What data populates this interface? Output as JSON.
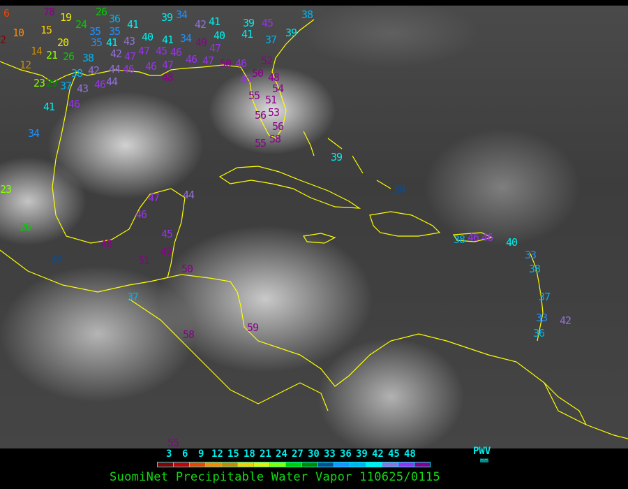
{
  "legend": {
    "ticks": [
      "3",
      "6",
      "9",
      "12",
      "15",
      "18",
      "21",
      "24",
      "27",
      "30",
      "33",
      "36",
      "39",
      "42",
      "45",
      "48"
    ],
    "colors": [
      "#8b0000",
      "#cc0000",
      "#ee4400",
      "#ff8800",
      "#cc8800",
      "#ffcc00",
      "#eeee00",
      "#88ff00",
      "#00cc00",
      "#008800",
      "#0e4c8c",
      "#1e90ff",
      "#00b4ee",
      "#00eeee",
      "#9370db",
      "#9932ee",
      "#8b008b"
    ],
    "unit_label": "PWV",
    "unit": "mm"
  },
  "caption": "SuomiNet Precipitable Water Vapor 110625/0115",
  "coastline_color": "#ffff00",
  "stations": [
    "6",
    "78",
    "19",
    "24",
    "26",
    "36",
    "35",
    "41",
    "39",
    "34",
    "35",
    "35",
    "10",
    "15",
    "2",
    "20",
    "41",
    "43",
    "40",
    "41",
    "34",
    "42",
    "41",
    "40",
    "49",
    "47",
    "39",
    "45",
    "41",
    "37",
    "39",
    "38",
    "14",
    "21",
    "26",
    "38",
    "42",
    "47",
    "47",
    "45",
    "46",
    "12",
    "38",
    "42",
    "44",
    "46",
    "46",
    "47",
    "46",
    "47",
    "50",
    "46",
    "45",
    "52",
    "50",
    "48",
    "23",
    "29",
    "37",
    "43",
    "46",
    "44",
    "48",
    "41",
    "46",
    "54",
    "51",
    "55",
    "53",
    "56",
    "56",
    "58",
    "55",
    "34",
    "39",
    "30",
    "23",
    "47",
    "44",
    "46",
    "26",
    "48",
    "45",
    "30",
    "51",
    "49",
    "50",
    "37",
    "58",
    "59",
    "38",
    "46",
    "46",
    "40",
    "33",
    "38",
    "37",
    "33",
    "42",
    "36",
    "55"
  ]
}
